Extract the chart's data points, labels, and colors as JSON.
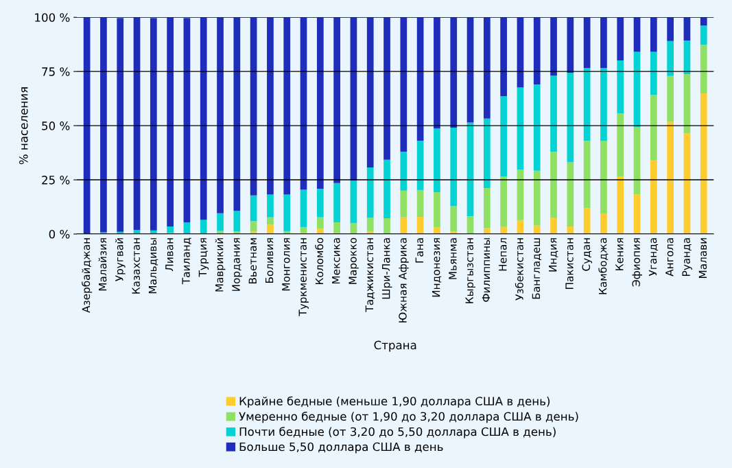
{
  "chart_data": {
    "type": "bar",
    "stacked": true,
    "xlabel": "Страна",
    "ylabel": "% населения",
    "categories": [
      "Азербайджан",
      "Малайзия",
      "Уругвай",
      "Казахстан",
      "Мальдивы",
      "Ливан",
      "Таиланд",
      "Турция",
      "Маврикий",
      "Иордания",
      "Вьетнам",
      "Боливия",
      "Монголия",
      "Туркменистан",
      "Коломбо",
      "Мексика",
      "Марокко",
      "Таджикистан",
      "Шри-Ланка",
      "Южная Африка",
      "Гана",
      "Индонезия",
      "Мьянма",
      "Кыргызстан",
      "Филиппины",
      "Непал",
      "Узбекистан",
      "Бангладеш",
      "Индия",
      "Пакистан",
      "Судан",
      "Камбоджа",
      "Кения",
      "Эфиопия",
      "Уганда",
      "Ангола",
      "Руанда",
      "Малави"
    ],
    "series": [
      {
        "name": "Крайне бедные (меньше 1,90 доллара США в день)",
        "color": "#ffcc2e",
        "values": [
          0,
          0,
          0,
          0,
          0,
          0,
          0,
          0,
          0,
          0,
          1.3,
          4.3,
          0,
          0.5,
          2.4,
          0.6,
          0,
          1.3,
          0,
          7.7,
          7.9,
          3.0,
          1.2,
          0,
          2.7,
          3.3,
          6.4,
          3.9,
          7.6,
          3.5,
          12.0,
          9.3,
          26.6,
          18.2,
          34.0,
          51.8,
          46.5,
          64.9
        ]
      },
      {
        "name": "Умеренно бедные (от 1,90 до 3,20 доллара США в день)",
        "color": "#8fe063",
        "values": [
          0,
          0,
          null,
          0,
          null,
          0.6,
          null,
          0,
          1.4,
          1.2,
          4.6,
          3.4,
          1.3,
          2.7,
          5.3,
          4.8,
          5.1,
          6.2,
          7.3,
          12.3,
          12.4,
          16.3,
          11.6,
          8.2,
          18.5,
          23.3,
          23.3,
          25.3,
          30.4,
          29.6,
          31.0,
          33.6,
          29.1,
          31.1,
          30.1,
          21.1,
          27.2,
          22.4
        ]
      },
      {
        "name": "Почти бедные (от 3,20 до 5,50 доллара США в день)",
        "color": "#05d3d3",
        "values": [
          null,
          0.8,
          1.0,
          1.9,
          1.7,
          2.9,
          5.3,
          6.6,
          8.2,
          9.5,
          11.9,
          10.5,
          16.9,
          17.2,
          13.1,
          18.1,
          19.5,
          23.2,
          27.0,
          18.0,
          22.8,
          29.4,
          36.3,
          43.3,
          32.1,
          37.0,
          37.9,
          39.8,
          35.1,
          41.3,
          33.6,
          33.7,
          24.4,
          34.8,
          20.0,
          16.2,
          15.6,
          8.9
        ]
      },
      {
        "name": "Больше 5,50 доллара США в день",
        "color": "#1f2dbd",
        "values": [
          100,
          99.2,
          98.7,
          98.1,
          98.0,
          96.5,
          94.4,
          93.4,
          90.4,
          89.3,
          82.2,
          81.8,
          81.8,
          79.6,
          79.2,
          76.5,
          75.4,
          69.3,
          65.7,
          62.0,
          56.9,
          51.3,
          50.9,
          48.5,
          46.7,
          36.4,
          32.4,
          31.0,
          26.9,
          25.6,
          23.4,
          23.4,
          19.9,
          15.9,
          15.9,
          10.9,
          10.7,
          3.8
        ]
      }
    ],
    "ylim": [
      0,
      100
    ],
    "yticks": [
      {
        "value": 0,
        "label": "0 %"
      },
      {
        "value": 25,
        "label": "25 %"
      },
      {
        "value": 50,
        "label": "50 %"
      },
      {
        "value": 75,
        "label": "75 %"
      },
      {
        "value": 100,
        "label": "100 %"
      }
    ],
    "grid": "y",
    "legend": "bottom"
  }
}
